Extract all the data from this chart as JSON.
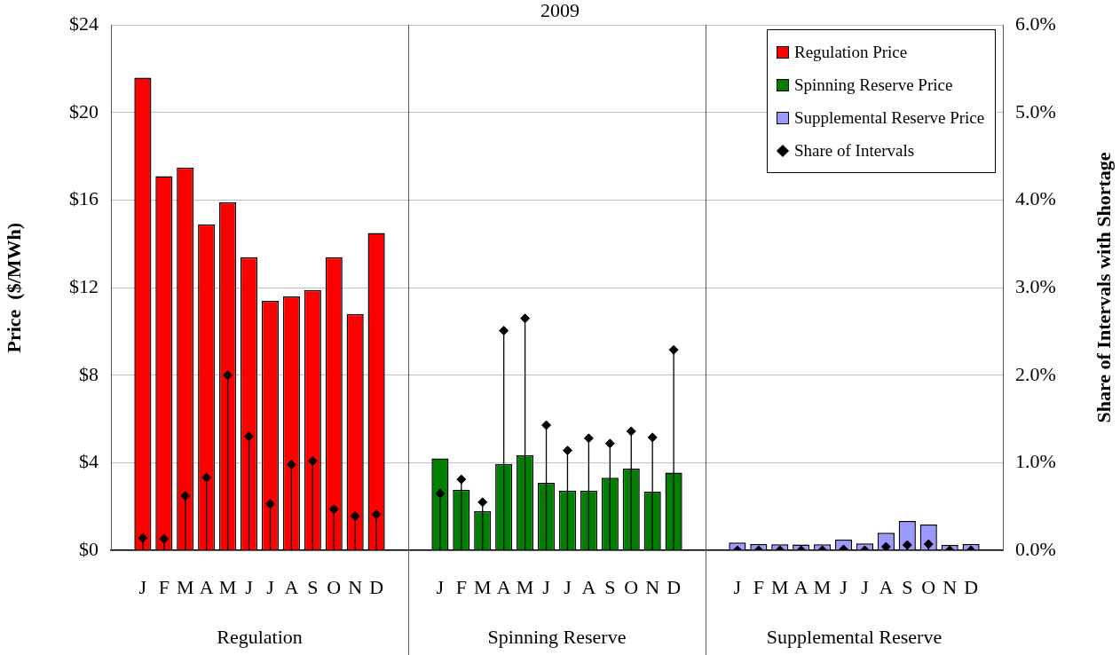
{
  "chart_data": {
    "type": "bar",
    "title": "2009",
    "ylabel": "Price  ($/MWh)",
    "y2label": "Share of Intervals with Shortage",
    "categories": [
      null,
      "J",
      "F",
      "M",
      "A",
      "M",
      "J",
      "J",
      "A",
      "S",
      "O",
      "N",
      "D",
      null,
      null,
      "J",
      "F",
      "M",
      "A",
      "M",
      "J",
      "J",
      "A",
      "S",
      "O",
      "N",
      "D",
      null,
      null,
      "J",
      "F",
      "M",
      "A",
      "M",
      "J",
      "J",
      "A",
      "S",
      "O",
      "N",
      "D",
      null
    ],
    "series": [
      {
        "name": "Regulation Price",
        "color": "#ff0000",
        "values": [
          null,
          21.6,
          17.1,
          17.5,
          14.9,
          15.9,
          13.4,
          11.4,
          11.6,
          11.9,
          13.4,
          10.8,
          14.5,
          null,
          null,
          null,
          null,
          null,
          null,
          null,
          null,
          null,
          null,
          null,
          null,
          null,
          null,
          null,
          null,
          null,
          null,
          null,
          null,
          null,
          null,
          null,
          null,
          null,
          null,
          null,
          null,
          null
        ]
      },
      {
        "name": "Spinning Reserve Price",
        "color": "#008000",
        "values": [
          null,
          null,
          null,
          null,
          null,
          null,
          null,
          null,
          null,
          null,
          null,
          null,
          null,
          null,
          null,
          4.2,
          2.77,
          1.8,
          3.95,
          4.35,
          3.08,
          2.73,
          2.73,
          3.32,
          3.73,
          2.68,
          3.55,
          null,
          null,
          null,
          null,
          null,
          null,
          null,
          null,
          null,
          null,
          null,
          null,
          null,
          null,
          null
        ]
      },
      {
        "name": "Supplemental Reserve Price",
        "color": "#9999ff",
        "values": [
          null,
          null,
          null,
          null,
          null,
          null,
          null,
          null,
          null,
          null,
          null,
          null,
          null,
          null,
          null,
          null,
          null,
          null,
          null,
          null,
          null,
          null,
          null,
          null,
          null,
          null,
          null,
          null,
          null,
          0.35,
          0.28,
          0.27,
          0.26,
          0.27,
          0.49,
          0.31,
          0.8,
          1.34,
          1.18,
          0.24,
          0.28,
          null
        ]
      },
      {
        "name": "Share of Intervals",
        "type": "lollipop",
        "axis": "y2",
        "marker": "diamond",
        "color": "#000000",
        "values": [
          null,
          0.14,
          0.13,
          0.62,
          0.83,
          2.0,
          1.3,
          0.53,
          0.98,
          1.02,
          0.47,
          0.39,
          0.41,
          null,
          null,
          0.65,
          0.81,
          0.55,
          2.51,
          2.65,
          1.43,
          1.14,
          1.28,
          1.22,
          1.36,
          1.29,
          2.29,
          null,
          null,
          0,
          0,
          0,
          0,
          0,
          0.01,
          0,
          0.04,
          0.06,
          0.07,
          0,
          0,
          null
        ]
      }
    ],
    "ylim": [
      0,
      24
    ],
    "yticks": [
      {
        "value": 0,
        "label": "$0"
      },
      {
        "value": 4,
        "label": "$4"
      },
      {
        "value": 8,
        "label": "$8"
      },
      {
        "value": 12,
        "label": "$12"
      },
      {
        "value": 16,
        "label": "$16"
      },
      {
        "value": 20,
        "label": "$20"
      },
      {
        "value": 24,
        "label": "$24"
      }
    ],
    "y2lim": [
      0,
      6
    ],
    "y2ticks": [
      {
        "value": 0,
        "label": "0.0%"
      },
      {
        "value": 1,
        "label": "1.0%"
      },
      {
        "value": 2,
        "label": "2.0%"
      },
      {
        "value": 3,
        "label": "3.0%"
      },
      {
        "value": 4,
        "label": "4.0%"
      },
      {
        "value": 5,
        "label": "5.0%"
      },
      {
        "value": 6,
        "label": "6.0%"
      }
    ],
    "annotations": [
      "Regulation",
      "Spinning Reserve",
      "Supplemental Reserve"
    ],
    "grid": "y",
    "legend": "top right"
  }
}
